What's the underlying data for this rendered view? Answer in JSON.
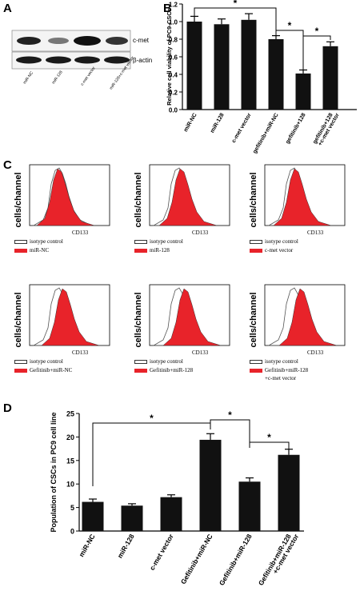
{
  "panels": {
    "a": "A",
    "b": "B",
    "c": "C",
    "d": "D"
  },
  "western_blot": {
    "bands": [
      "c-met",
      "β-actin"
    ],
    "lanes": [
      "miR-NC",
      "miR-128",
      "c-met vector",
      "miR-128+c-met vector"
    ]
  },
  "flow_cytometry": {
    "ylabel": "cells/channel",
    "xlabel": "CD133",
    "isotype": "isotype control",
    "plots": [
      {
        "label": [
          "miR-NC"
        ]
      },
      {
        "label": [
          "miR-128"
        ]
      },
      {
        "label": [
          "c-met vector"
        ]
      },
      {
        "label": [
          "Gefitinib+miR-NC"
        ]
      },
      {
        "label": [
          "Gefitinib+miR-128"
        ]
      },
      {
        "label": [
          "Gefitinib+miR-128",
          "+c-met vector"
        ]
      }
    ]
  },
  "chart_data": [
    {
      "type": "bar",
      "categories": [
        "miR-NC",
        "miR-128",
        "c-met vector",
        "gefitinib+miR-NC",
        "gefitinib+128",
        "gefitinib+128\n+c-met vector"
      ],
      "values": [
        1.0,
        0.97,
        1.02,
        0.8,
        0.41,
        0.72
      ],
      "errors": [
        0.06,
        0.06,
        0.07,
        0.04,
        0.04,
        0.05
      ],
      "ylabel": "Relative cell viability of PC9-CSCs",
      "ylim": [
        0.0,
        1.2
      ],
      "yticks": [
        "0.0",
        "0.2",
        "0.4",
        "0.6",
        "0.8",
        "1.0",
        "1.2"
      ],
      "significance": [
        "*",
        "*",
        "*"
      ]
    },
    {
      "type": "bar",
      "categories": [
        "miR-NC",
        "miR-128",
        "c-met vector",
        "Gefitinib+miR-NC",
        "Gefitinib+miR-128",
        "Gefitinib+miR-128\n+c-met vector"
      ],
      "values": [
        6.2,
        5.4,
        7.2,
        19.4,
        10.5,
        16.2
      ],
      "errors": [
        0.6,
        0.4,
        0.5,
        1.3,
        0.8,
        1.2
      ],
      "ylabel": "Population of CSCs in PC9 cell line",
      "ylim": [
        0,
        25
      ],
      "yticks": [
        "0",
        "5",
        "10",
        "15",
        "20",
        "25"
      ],
      "significance": [
        "*",
        "*",
        "*"
      ]
    }
  ]
}
